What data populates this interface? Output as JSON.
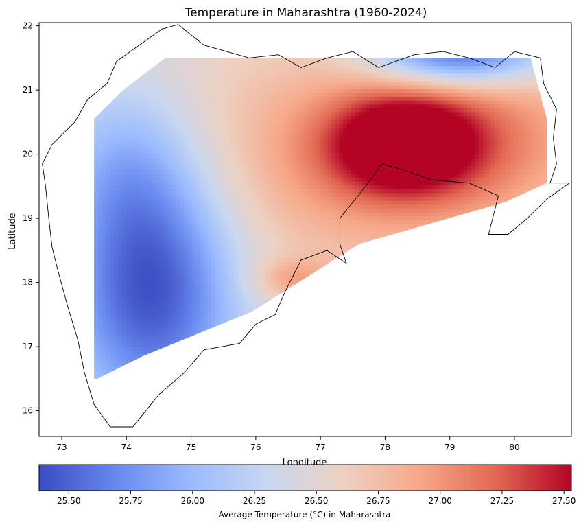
{
  "chart_data": {
    "type": "heatmap",
    "title": "Temperature in Maharashtra (1960-2024)",
    "xlabel": "Longitude",
    "ylabel": "Latitude",
    "xlim": [
      72.65,
      80.88
    ],
    "ylim": [
      15.6,
      22.05
    ],
    "x_ticks": [
      73,
      74,
      75,
      76,
      77,
      78,
      79,
      80
    ],
    "y_ticks": [
      16,
      17,
      18,
      19,
      20,
      21,
      22
    ],
    "grid": false,
    "colormap": "coolwarm",
    "colormap_stops": [
      "#3b4cc0",
      "#6788ee",
      "#9abbff",
      "#c9d7f0",
      "#edd1c2",
      "#f7a889",
      "#e26952",
      "#b40426"
    ],
    "colorbar": {
      "label": "Average Temperature (°C) in Maharashtra",
      "range": [
        25.38,
        27.53
      ],
      "ticks": [
        25.5,
        25.75,
        26.0,
        26.25,
        26.5,
        26.75,
        27.0,
        27.25,
        27.5
      ],
      "tick_labels": [
        "25.50",
        "25.75",
        "26.00",
        "26.25",
        "26.50",
        "26.75",
        "27.00",
        "27.25",
        "27.50"
      ],
      "orientation": "horizontal"
    },
    "interpolated_region": [
      [
        73.5,
        16.5
      ],
      [
        73.5,
        20.55
      ],
      [
        73.95,
        21.0
      ],
      [
        74.6,
        21.5
      ],
      [
        80.25,
        21.5
      ],
      [
        80.5,
        20.55
      ],
      [
        80.5,
        19.55
      ],
      [
        79.85,
        19.25
      ],
      [
        77.6,
        18.6
      ],
      [
        75.95,
        17.55
      ],
      [
        74.25,
        16.85
      ],
      [
        73.55,
        16.5
      ]
    ],
    "temperature_field": {
      "base": 26.45,
      "anomalies": [
        {
          "lon": 74.4,
          "lat": 18.0,
          "sx": 0.95,
          "sy": 1.45,
          "amp": -1.1
        },
        {
          "lon": 73.95,
          "lat": 19.9,
          "sx": 0.75,
          "sy": 0.9,
          "amp": -0.35
        },
        {
          "lon": 78.3,
          "lat": 20.15,
          "sx": 0.8,
          "sy": 0.55,
          "amp": 1.0
        },
        {
          "lon": 79.3,
          "lat": 20.3,
          "sx": 1.7,
          "sy": 1.0,
          "amp": 0.5
        },
        {
          "lon": 76.9,
          "lat": 19.8,
          "sx": 2.2,
          "sy": 1.4,
          "amp": 0.38
        },
        {
          "lon": 79.1,
          "lat": 21.55,
          "sx": 0.95,
          "sy": 0.35,
          "amp": -1.15
        },
        {
          "lon": 76.6,
          "lat": 18.05,
          "sx": 0.45,
          "sy": 0.22,
          "amp": 0.4
        }
      ]
    },
    "state_boundary": [
      [
        74.55,
        21.95
      ],
      [
        74.8,
        22.02
      ],
      [
        75.2,
        21.7
      ],
      [
        75.9,
        21.5
      ],
      [
        76.35,
        21.55
      ],
      [
        76.7,
        21.35
      ],
      [
        77.1,
        21.5
      ],
      [
        77.5,
        21.6
      ],
      [
        77.9,
        21.35
      ],
      [
        78.45,
        21.55
      ],
      [
        78.9,
        21.6
      ],
      [
        79.3,
        21.5
      ],
      [
        79.7,
        21.35
      ],
      [
        80.0,
        21.6
      ],
      [
        80.4,
        21.5
      ],
      [
        80.45,
        21.1
      ],
      [
        80.65,
        20.7
      ],
      [
        80.6,
        20.25
      ],
      [
        80.65,
        19.85
      ],
      [
        80.55,
        19.55
      ],
      [
        80.85,
        19.55
      ],
      [
        80.5,
        19.3
      ],
      [
        80.2,
        19.0
      ],
      [
        79.9,
        18.75
      ],
      [
        79.6,
        18.75
      ],
      [
        79.75,
        19.35
      ],
      [
        79.3,
        19.55
      ],
      [
        78.7,
        19.6
      ],
      [
        78.3,
        19.75
      ],
      [
        77.95,
        19.85
      ],
      [
        77.7,
        19.5
      ],
      [
        77.3,
        19.0
      ],
      [
        77.3,
        18.6
      ],
      [
        77.4,
        18.3
      ],
      [
        77.1,
        18.5
      ],
      [
        76.7,
        18.35
      ],
      [
        76.45,
        17.85
      ],
      [
        76.3,
        17.5
      ],
      [
        76.0,
        17.35
      ],
      [
        75.75,
        17.05
      ],
      [
        75.2,
        16.95
      ],
      [
        74.9,
        16.6
      ],
      [
        74.5,
        16.25
      ],
      [
        74.1,
        15.75
      ],
      [
        73.75,
        15.75
      ],
      [
        73.5,
        16.1
      ],
      [
        73.35,
        16.6
      ],
      [
        73.25,
        17.1
      ],
      [
        73.1,
        17.6
      ],
      [
        72.95,
        18.15
      ],
      [
        72.85,
        18.55
      ],
      [
        72.8,
        19.0
      ],
      [
        72.75,
        19.5
      ],
      [
        72.7,
        19.85
      ],
      [
        72.85,
        20.15
      ],
      [
        73.2,
        20.5
      ],
      [
        73.4,
        20.85
      ],
      [
        73.7,
        21.1
      ],
      [
        73.85,
        21.45
      ],
      [
        74.2,
        21.7
      ]
    ],
    "border_note": ""
  }
}
